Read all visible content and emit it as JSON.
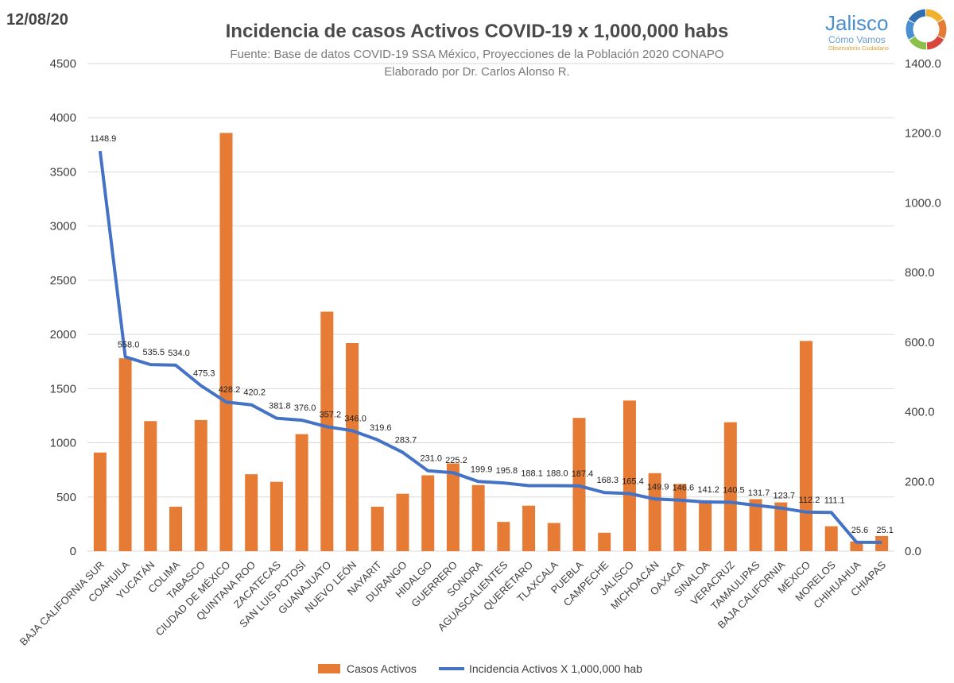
{
  "header": {
    "date": "12/08/20",
    "title": "Incidencia de casos Activos COVID-19 x 1,000,000 habs",
    "subtitle1": "Fuente: Base de datos COVID-19 SSA México, Proyecciones de la Población 2020 CONAPO",
    "subtitle2": "Elaborado por Dr. Carlos Alonso R."
  },
  "logo": {
    "name": "Jalisco",
    "tagline": "Cómo Vamos",
    "small": "Observatorio Ciudadano",
    "colors": [
      "#f0b030",
      "#e57b35",
      "#d9463e",
      "#8cc04b",
      "#4a8fd0",
      "#2f6fb0"
    ]
  },
  "colors": {
    "bar": "#e57b35",
    "line": "#4472c4",
    "grid": "#d9d9d9",
    "axis_text": "#404040"
  },
  "chart_data": {
    "type": "bar",
    "title": "Incidencia de casos Activos COVID-19 x 1,000,000 habs",
    "categories": [
      "BAJA CALIFORNIA SUR",
      "COAHUILA",
      "YUCATÁN",
      "COLIMA",
      "TABASCO",
      "CIUDAD DE MÉXICO",
      "QUINTANA ROO",
      "ZACATECAS",
      "SAN LUIS POTOSÍ",
      "GUANAJUATO",
      "NUEVO LEÓN",
      "NAYARIT",
      "DURANGO",
      "HIDALGO",
      "GUERRERO",
      "SONORA",
      "AGUASCALIENTES",
      "QUERÉTARO",
      "TLAXCALA",
      "PUEBLA",
      "CAMPECHE",
      "JALISCO",
      "MICHOACÁN",
      "OAXACA",
      "SINALOA",
      "VERACRUZ",
      "TAMAULIPAS",
      "BAJA CALIFORNIA",
      "MÉXICO",
      "MORELOS",
      "CHIHUAHUA",
      "CHIAPAS"
    ],
    "series": [
      {
        "name": "Casos Activos",
        "type": "bar",
        "axis": "left",
        "values": [
          910,
          1780,
          1200,
          410,
          1210,
          3860,
          710,
          640,
          1080,
          2210,
          1920,
          410,
          530,
          700,
          810,
          610,
          270,
          420,
          260,
          1230,
          170,
          1390,
          720,
          620,
          470,
          1190,
          480,
          450,
          1940,
          230,
          90,
          140
        ]
      },
      {
        "name": "Incidencia Activos X 1,000,000 hab",
        "type": "line",
        "axis": "right",
        "values": [
          1148.9,
          558.0,
          535.5,
          534.0,
          475.3,
          428.2,
          420.2,
          381.8,
          376.0,
          357.2,
          346.0,
          319.6,
          283.7,
          231.0,
          225.2,
          199.9,
          195.8,
          188.1,
          188.0,
          187.4,
          168.3,
          165.4,
          149.9,
          146.6,
          141.2,
          140.5,
          131.7,
          123.7,
          112.2,
          111.1,
          25.6,
          25.1
        ],
        "labels": [
          "1148.9",
          "558.0",
          "535.5",
          "534.0",
          "475.3",
          "428.2",
          "420.2",
          "381.8",
          "376.0",
          "357.2",
          "346.0",
          "319.6",
          "283.7",
          "231.0",
          "225.2",
          "199.9",
          "195.8",
          "188.1",
          "188.0",
          "187.4",
          "168.3",
          "165.4",
          "149.9",
          "146.6",
          "141.2",
          "140.5",
          "131.7",
          "123.7",
          "112.2",
          "111.1",
          "25.6",
          "25.1"
        ]
      }
    ],
    "y_left": {
      "min": 0,
      "max": 4500,
      "ticks": [
        "0",
        "500",
        "1000",
        "1500",
        "2000",
        "2500",
        "3000",
        "3500",
        "4000",
        "4500"
      ]
    },
    "y_right": {
      "min": 0,
      "max": 1400,
      "ticks": [
        "0.0",
        "200.0",
        "400.0",
        "600.0",
        "800.0",
        "1000.0",
        "1200.0",
        "1400.0"
      ]
    },
    "grid": true,
    "legend_position": "bottom"
  }
}
